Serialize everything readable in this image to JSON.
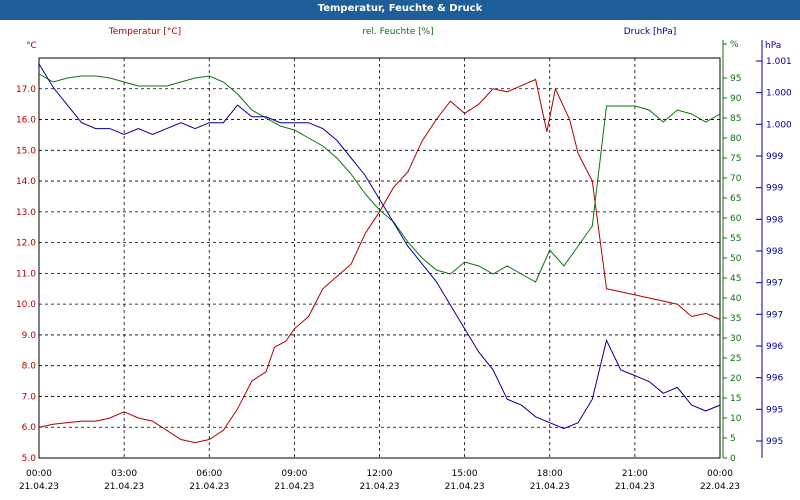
{
  "window": {
    "title": "Temperatur, Feuchte & Druck"
  },
  "colors": {
    "temperature": "#b00000",
    "humidity": "#107010",
    "pressure": "#00009e",
    "title_bar": "#1f5f99"
  },
  "chart_data": {
    "type": "line",
    "title": "Temperatur, Feuchte & Druck",
    "grid": true,
    "x_ticks": [
      {
        "time": "00:00",
        "date": "21.04.23"
      },
      {
        "time": "03:00",
        "date": "21.04.23"
      },
      {
        "time": "06:00",
        "date": "21.04.23"
      },
      {
        "time": "09:00",
        "date": "21.04.23"
      },
      {
        "time": "12:00",
        "date": "21.04.23"
      },
      {
        "time": "15:00",
        "date": "21.04.23"
      },
      {
        "time": "18:00",
        "date": "21.04.23"
      },
      {
        "time": "21:00",
        "date": "21.04.23"
      },
      {
        "time": "00:00",
        "date": "22.04.23"
      }
    ],
    "xlim_hours": [
      0,
      24
    ],
    "axes": {
      "temperature": {
        "label": "Temperatur [°C]",
        "unit": "°C",
        "ylim": [
          5.0,
          18.0
        ],
        "ticks": [
          "5.0",
          "6.0",
          "7.0",
          "8.0",
          "9.0",
          "10.0",
          "11.0",
          "12.0",
          "13.0",
          "14.0",
          "15.0",
          "16.0",
          "17.0"
        ]
      },
      "humidity": {
        "label": "rel. Feuchte [%]",
        "unit": "%",
        "ylim": [
          0,
          100
        ],
        "ticks": [
          "0",
          "5",
          "10",
          "15",
          "20",
          "25",
          "30",
          "35",
          "40",
          "45",
          "50",
          "55",
          "60",
          "65",
          "70",
          "75",
          "80",
          "85",
          "90",
          "95",
          "%"
        ]
      },
      "pressure": {
        "label": "Druck [hPa]",
        "unit": "hPa",
        "ylim": [
          994.5,
          1001.3
        ],
        "ticks": [
          "995",
          "995",
          "996",
          "996",
          "997",
          "997",
          "998",
          "998",
          "999",
          "999",
          "1.000",
          "1.000",
          "1.001"
        ]
      }
    },
    "series": [
      {
        "name": "Temperatur [°C]",
        "axis": "temperature",
        "points": [
          [
            0,
            6.0
          ],
          [
            0.5,
            6.1
          ],
          [
            1,
            6.15
          ],
          [
            1.5,
            6.2
          ],
          [
            2,
            6.2
          ],
          [
            2.5,
            6.3
          ],
          [
            3,
            6.5
          ],
          [
            3.5,
            6.3
          ],
          [
            4,
            6.2
          ],
          [
            4.5,
            5.9
          ],
          [
            5,
            5.6
          ],
          [
            5.5,
            5.5
          ],
          [
            6,
            5.6
          ],
          [
            6.5,
            5.9
          ],
          [
            7,
            6.6
          ],
          [
            7.5,
            7.5
          ],
          [
            8,
            7.8
          ],
          [
            8.3,
            8.6
          ],
          [
            8.7,
            8.8
          ],
          [
            9,
            9.2
          ],
          [
            9.5,
            9.6
          ],
          [
            10,
            10.5
          ],
          [
            10.5,
            10.9
          ],
          [
            11,
            11.3
          ],
          [
            11.5,
            12.3
          ],
          [
            12,
            13.0
          ],
          [
            12.5,
            13.8
          ],
          [
            13,
            14.3
          ],
          [
            13.5,
            15.3
          ],
          [
            14,
            16.0
          ],
          [
            14.5,
            16.6
          ],
          [
            15,
            16.2
          ],
          [
            15.5,
            16.5
          ],
          [
            16,
            17.0
          ],
          [
            16.5,
            16.9
          ],
          [
            17,
            17.1
          ],
          [
            17.5,
            17.3
          ],
          [
            17.9,
            15.6
          ],
          [
            18.2,
            17.0
          ],
          [
            18.7,
            16.0
          ],
          [
            19,
            14.9
          ],
          [
            19.5,
            14.0
          ],
          [
            20,
            10.5
          ],
          [
            20.5,
            10.4
          ],
          [
            21,
            10.3
          ],
          [
            21.5,
            10.2
          ],
          [
            22,
            10.1
          ],
          [
            22.5,
            10.0
          ],
          [
            23,
            9.6
          ],
          [
            23.5,
            9.7
          ],
          [
            24,
            9.5
          ]
        ]
      },
      {
        "name": "rel. Feuchte [%]",
        "axis": "humidity",
        "points": [
          [
            0,
            96
          ],
          [
            0.5,
            94
          ],
          [
            1,
            95
          ],
          [
            1.5,
            95.5
          ],
          [
            2,
            95.5
          ],
          [
            2.5,
            95
          ],
          [
            3,
            94
          ],
          [
            3.5,
            93
          ],
          [
            4,
            93
          ],
          [
            4.5,
            93
          ],
          [
            5,
            94
          ],
          [
            5.5,
            95
          ],
          [
            6,
            95.5
          ],
          [
            6.5,
            94
          ],
          [
            7,
            91
          ],
          [
            7.5,
            87
          ],
          [
            8,
            85
          ],
          [
            8.5,
            83
          ],
          [
            9,
            82
          ],
          [
            9.5,
            80
          ],
          [
            10,
            78
          ],
          [
            10.5,
            75
          ],
          [
            11,
            71
          ],
          [
            11.5,
            66
          ],
          [
            12,
            62
          ],
          [
            12.5,
            59
          ],
          [
            13,
            54
          ],
          [
            13.5,
            50
          ],
          [
            14,
            47
          ],
          [
            14.5,
            46
          ],
          [
            15,
            49
          ],
          [
            15.5,
            48
          ],
          [
            16,
            46
          ],
          [
            16.5,
            48
          ],
          [
            17,
            46
          ],
          [
            17.5,
            44
          ],
          [
            18,
            52
          ],
          [
            18.5,
            48
          ],
          [
            19,
            53
          ],
          [
            19.5,
            58
          ],
          [
            20,
            88
          ],
          [
            20.5,
            88
          ],
          [
            21,
            88
          ],
          [
            21.5,
            87
          ],
          [
            22,
            84
          ],
          [
            22.5,
            87
          ],
          [
            23,
            86
          ],
          [
            23.5,
            84
          ],
          [
            24,
            86
          ]
        ]
      },
      {
        "name": "Druck [hPa]",
        "axis": "pressure",
        "points": [
          [
            0,
            1001.2
          ],
          [
            0.5,
            1000.8
          ],
          [
            1,
            1000.5
          ],
          [
            1.5,
            1000.2
          ],
          [
            2,
            1000.1
          ],
          [
            2.5,
            1000.1
          ],
          [
            3,
            1000.0
          ],
          [
            3.5,
            1000.1
          ],
          [
            4,
            1000.0
          ],
          [
            4.5,
            1000.1
          ],
          [
            5,
            1000.2
          ],
          [
            5.5,
            1000.1
          ],
          [
            6,
            1000.2
          ],
          [
            6.5,
            1000.2
          ],
          [
            7,
            1000.5
          ],
          [
            7.5,
            1000.3
          ],
          [
            8,
            1000.3
          ],
          [
            8.5,
            1000.2
          ],
          [
            9,
            1000.2
          ],
          [
            9.5,
            1000.2
          ],
          [
            10,
            1000.1
          ],
          [
            10.5,
            999.9
          ],
          [
            11,
            999.6
          ],
          [
            11.5,
            999.3
          ],
          [
            12,
            998.9
          ],
          [
            12.5,
            998.5
          ],
          [
            13,
            998.1
          ],
          [
            13.5,
            997.8
          ],
          [
            14,
            997.5
          ],
          [
            14.5,
            997.1
          ],
          [
            15,
            996.7
          ],
          [
            15.5,
            996.3
          ],
          [
            16,
            996.0
          ],
          [
            16.5,
            995.5
          ],
          [
            17,
            995.4
          ],
          [
            17.5,
            995.2
          ],
          [
            18,
            995.1
          ],
          [
            18.5,
            995.0
          ],
          [
            19,
            995.1
          ],
          [
            19.5,
            995.5
          ],
          [
            20,
            996.5
          ],
          [
            20.5,
            996.0
          ],
          [
            21,
            995.9
          ],
          [
            21.5,
            995.8
          ],
          [
            22,
            995.6
          ],
          [
            22.5,
            995.7
          ],
          [
            23,
            995.4
          ],
          [
            23.5,
            995.3
          ],
          [
            24,
            995.4
          ]
        ]
      }
    ]
  }
}
